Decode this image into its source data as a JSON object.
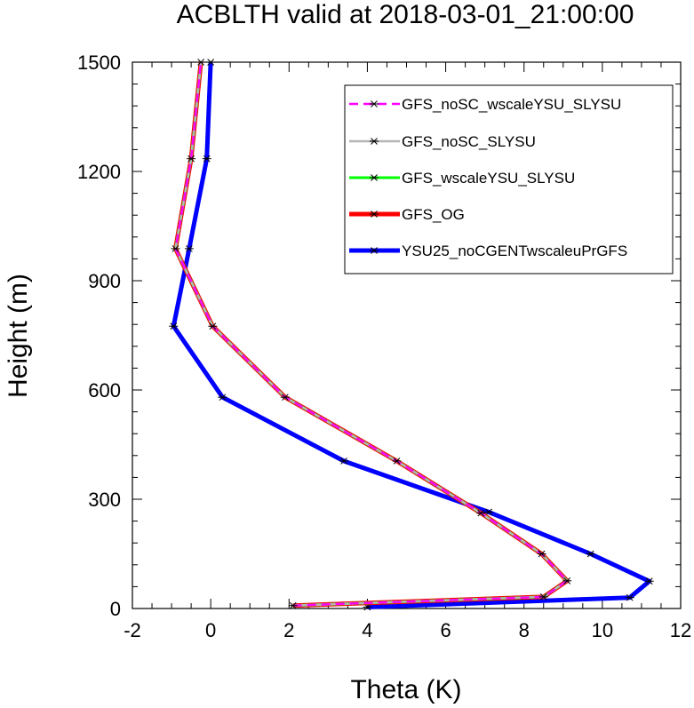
{
  "chart_data": {
    "type": "line",
    "title": "ACBLTH valid at 2018-03-01_21:00:00",
    "xlabel": "Theta (K)",
    "ylabel": "Height (m)",
    "xlim": [
      -2,
      12
    ],
    "ylim": [
      0,
      1500
    ],
    "xticks": [
      "-2",
      "0",
      "2",
      "4",
      "6",
      "8",
      "10",
      "12"
    ],
    "yticks": [
      "0",
      "300",
      "600",
      "900",
      "1200",
      "1500"
    ],
    "legend_position": "top-right",
    "grid": false,
    "series": [
      {
        "name": "GFS_noSC_wscaleYSU_SLYSU",
        "color": "#ff00ff",
        "line_style": "dashed",
        "marker": "asterisk",
        "points": [
          [
            2.1,
            8
          ],
          [
            8.5,
            32
          ],
          [
            9.1,
            76
          ],
          [
            8.45,
            150
          ],
          [
            6.9,
            262
          ],
          [
            4.75,
            405
          ],
          [
            1.9,
            580
          ],
          [
            0.05,
            775
          ],
          [
            -0.9,
            988
          ],
          [
            -0.5,
            1235
          ],
          [
            -0.25,
            1500
          ]
        ]
      },
      {
        "name": "GFS_noSC_SLYSU",
        "color": "#b4b4b4",
        "line_style": "solid",
        "marker": "asterisk",
        "points": [
          [
            2.1,
            8
          ],
          [
            8.5,
            32
          ],
          [
            9.1,
            76
          ],
          [
            8.45,
            150
          ],
          [
            6.9,
            262
          ],
          [
            4.75,
            405
          ],
          [
            1.9,
            580
          ],
          [
            0.05,
            775
          ],
          [
            -0.9,
            988
          ],
          [
            -0.5,
            1235
          ],
          [
            -0.25,
            1500
          ]
        ]
      },
      {
        "name": "GFS_wscaleYSU_SLYSU",
        "color": "#00ff00",
        "line_style": "solid",
        "marker": "asterisk",
        "points": [
          [
            2.1,
            8
          ],
          [
            8.5,
            32
          ],
          [
            9.1,
            76
          ],
          [
            8.45,
            150
          ],
          [
            6.9,
            262
          ],
          [
            4.75,
            405
          ],
          [
            1.9,
            580
          ],
          [
            0.05,
            775
          ],
          [
            -0.9,
            988
          ],
          [
            -0.5,
            1235
          ],
          [
            -0.25,
            1500
          ]
        ]
      },
      {
        "name": "GFS_OG",
        "color": "#ff0000",
        "line_style": "solid",
        "marker": "asterisk",
        "points": [
          [
            2.1,
            8
          ],
          [
            8.5,
            32
          ],
          [
            9.1,
            76
          ],
          [
            8.45,
            150
          ],
          [
            6.9,
            262
          ],
          [
            4.75,
            405
          ],
          [
            1.9,
            580
          ],
          [
            0.05,
            775
          ],
          [
            -0.9,
            988
          ],
          [
            -0.5,
            1235
          ],
          [
            -0.25,
            1500
          ]
        ]
      },
      {
        "name": "YSU25_noCGENTwscaleuPrGFS",
        "color": "#0000ff",
        "line_style": "solid",
        "marker": "asterisk",
        "points": [
          [
            4.0,
            4
          ],
          [
            10.7,
            30
          ],
          [
            11.2,
            75
          ],
          [
            9.7,
            150
          ],
          [
            7.1,
            265
          ],
          [
            3.4,
            405
          ],
          [
            0.3,
            580
          ],
          [
            -0.95,
            775
          ],
          [
            -0.55,
            988
          ],
          [
            -0.1,
            1235
          ],
          [
            0.0,
            1500
          ]
        ]
      }
    ]
  }
}
